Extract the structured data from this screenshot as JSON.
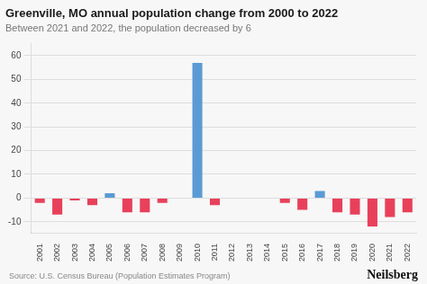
{
  "chart_data": {
    "type": "bar",
    "title": "Greenville, MO annual population change from 2000 to 2022",
    "subtitle": "Between 2021 and 2022, the population decreased by 6",
    "annotations": [
      "Source: U.S. Census Bureau (Population Estimates Program)",
      "Neilsberg"
    ],
    "categories": [
      "2001",
      "2002",
      "2003",
      "2004",
      "2005",
      "2006",
      "2007",
      "2008",
      "2009",
      "2010",
      "2011",
      "2012",
      "2013",
      "2014",
      "2015",
      "2016",
      "2017",
      "2018",
      "2019",
      "2020",
      "2021",
      "2022"
    ],
    "values": [
      -2,
      -7,
      -1,
      -3,
      2,
      -6,
      -6,
      -2,
      0,
      57,
      -3,
      0,
      0,
      0,
      -2,
      -5,
      3,
      -6,
      -7,
      -12,
      -8,
      -6
    ],
    "colors": [
      "#e8405a",
      "#e8405a",
      "#e8405a",
      "#e8405a",
      "#5b9bd5",
      "#e8405a",
      "#e8405a",
      "#e8405a",
      "#e8405a",
      "#5b9bd5",
      "#e8405a",
      "#e8405a",
      "#e8405a",
      "#e8405a",
      "#e8405a",
      "#e8405a",
      "#5b9bd5",
      "#e8405a",
      "#e8405a",
      "#e8405a",
      "#e8405a",
      "#e8405a"
    ],
    "ylim": [
      -15,
      65
    ],
    "yticks": [
      -10,
      0,
      10,
      20,
      30,
      40,
      50,
      60
    ],
    "grid": true
  }
}
